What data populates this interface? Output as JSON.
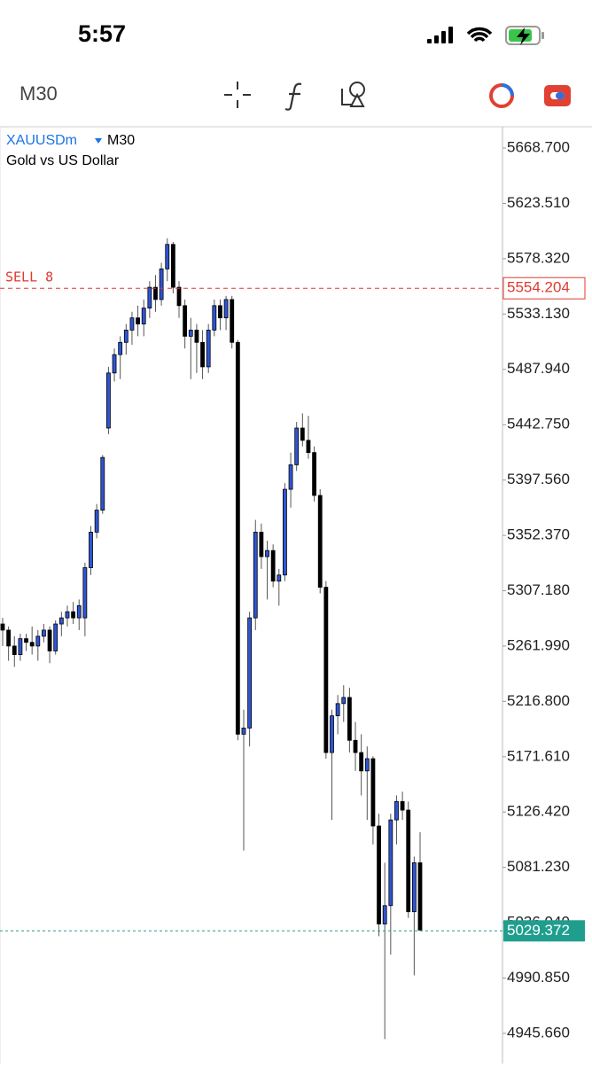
{
  "status_bar": {
    "time": "5:57"
  },
  "toolbar": {
    "timeframe": "M30"
  },
  "chart": {
    "type": "candlestick",
    "symbol": "XAUUSDm",
    "timeframe": "M30",
    "description": "Gold vs US Dollar",
    "ylim": [
      4921.0,
      5686.1
    ],
    "yticks": [
      {
        "value": 5668.7,
        "label": "5668.700"
      },
      {
        "value": 5623.51,
        "label": "5623.510"
      },
      {
        "value": 5578.32,
        "label": "5578.320"
      },
      {
        "value": 5533.13,
        "label": "5533.130"
      },
      {
        "value": 5487.94,
        "label": "5487.940"
      },
      {
        "value": 5442.75,
        "label": "5442.750"
      },
      {
        "value": 5397.56,
        "label": "5397.560"
      },
      {
        "value": 5352.37,
        "label": "5352.370"
      },
      {
        "value": 5307.18,
        "label": "5307.180"
      },
      {
        "value": 5261.99,
        "label": "5261.990"
      },
      {
        "value": 5216.8,
        "label": "5216.800"
      },
      {
        "value": 5171.61,
        "label": "5171.610"
      },
      {
        "value": 5126.42,
        "label": "5126.420"
      },
      {
        "value": 5081.23,
        "label": "5081.230"
      },
      {
        "value": 5036.04,
        "label": "5036.040"
      },
      {
        "value": 4990.85,
        "label": "4990.850"
      },
      {
        "value": 4945.66,
        "label": "4945.660"
      }
    ],
    "order": {
      "label": "SELL 8",
      "price": 5554.204,
      "color": "#e0392f"
    },
    "current_price": {
      "price": 5029.372,
      "color": "#1f9e8e"
    },
    "bull_color": "#2f55d4",
    "bear_color": "#000000",
    "candles": {
      "open": [
        5280,
        5275,
        5262,
        5255,
        5268,
        5265,
        5262,
        5270,
        5275,
        5258,
        5280,
        5285,
        5290,
        5285,
        5285,
        5326,
        5355,
        5373,
        5440,
        5485,
        5500,
        5510,
        5520,
        5530,
        5525,
        5538,
        5555,
        5545,
        5570,
        5590,
        5555,
        5540,
        5515,
        5520,
        5510,
        5490,
        5520,
        5540,
        5530,
        5545,
        5510,
        5190,
        5195,
        5285,
        5355,
        5335,
        5340,
        5315,
        5320,
        5390,
        5410,
        5440,
        5430,
        5420,
        5385,
        5310,
        5175,
        5205,
        5215,
        5220,
        5185,
        5175,
        5160,
        5170,
        5115,
        5035,
        5050,
        5120,
        5135,
        5128,
        5045,
        5085
      ],
      "high": [
        5285,
        5278,
        5270,
        5272,
        5272,
        5278,
        5275,
        5280,
        5278,
        5283,
        5290,
        5295,
        5298,
        5300,
        5330,
        5360,
        5378,
        5418,
        5490,
        5505,
        5515,
        5525,
        5535,
        5540,
        5545,
        5560,
        5565,
        5575,
        5595,
        5592,
        5560,
        5545,
        5530,
        5525,
        5520,
        5525,
        5545,
        5545,
        5548,
        5548,
        5512,
        5210,
        5290,
        5365,
        5362,
        5348,
        5345,
        5325,
        5395,
        5420,
        5445,
        5452,
        5450,
        5425,
        5390,
        5315,
        5210,
        5222,
        5230,
        5228,
        5200,
        5190,
        5180,
        5172,
        5125,
        5085,
        5125,
        5140,
        5143,
        5135,
        5090,
        5110
      ],
      "low": [
        5262,
        5250,
        5245,
        5250,
        5258,
        5255,
        5250,
        5265,
        5248,
        5255,
        5270,
        5278,
        5280,
        5275,
        5270,
        5320,
        5350,
        5370,
        5435,
        5478,
        5480,
        5500,
        5508,
        5515,
        5515,
        5530,
        5535,
        5540,
        5560,
        5550,
        5530,
        5505,
        5480,
        5485,
        5480,
        5485,
        5515,
        5520,
        5520,
        5505,
        5185,
        5095,
        5180,
        5275,
        5325,
        5300,
        5310,
        5295,
        5315,
        5375,
        5405,
        5425,
        5415,
        5380,
        5305,
        5170,
        5120,
        5190,
        5200,
        5175,
        5160,
        5140,
        5120,
        5100,
        5025,
        4941,
        5010,
        5100,
        5120,
        5040,
        4993,
        5030
      ],
      "close": [
        5275,
        5262,
        5255,
        5268,
        5265,
        5262,
        5270,
        5275,
        5258,
        5280,
        5285,
        5290,
        5285,
        5295,
        5326,
        5355,
        5373,
        5416,
        5485,
        5500,
        5510,
        5520,
        5530,
        5525,
        5538,
        5555,
        5545,
        5570,
        5590,
        5555,
        5540,
        5515,
        5520,
        5510,
        5490,
        5520,
        5540,
        5530,
        5545,
        5510,
        5190,
        5195,
        5285,
        5355,
        5335,
        5340,
        5315,
        5320,
        5390,
        5410,
        5440,
        5430,
        5420,
        5385,
        5310,
        5175,
        5205,
        5215,
        5220,
        5185,
        5175,
        5160,
        5170,
        5115,
        5035,
        5050,
        5120,
        5135,
        5128,
        5045,
        5085,
        5030
      ]
    }
  }
}
